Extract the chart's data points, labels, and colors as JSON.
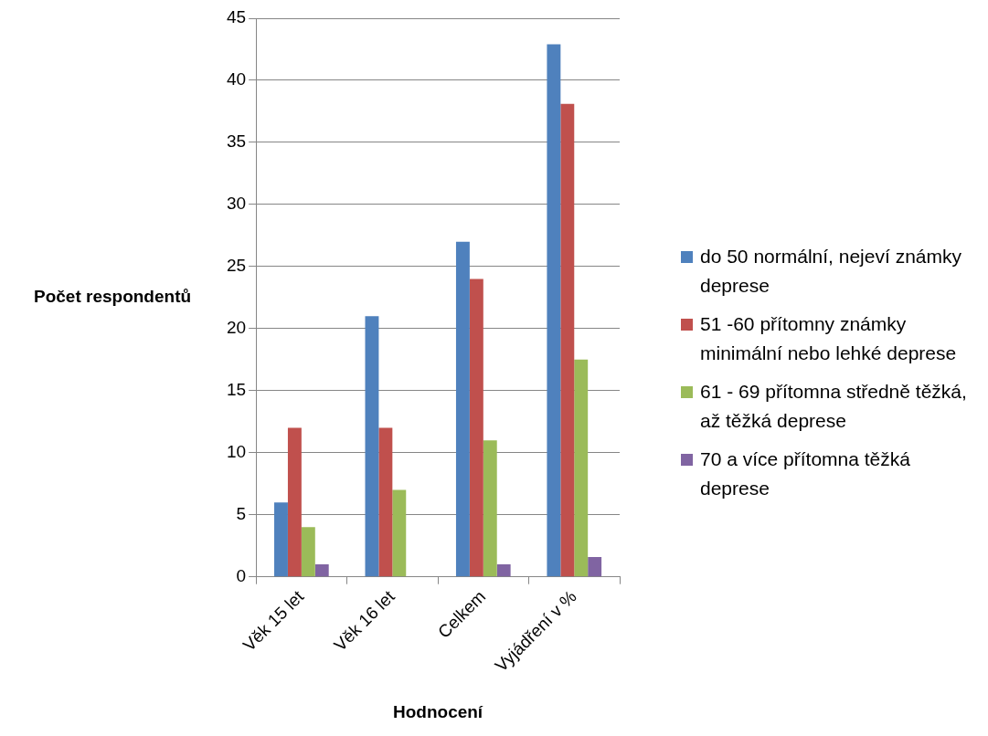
{
  "chart_data": {
    "type": "bar",
    "xlabel": "Hodnocení",
    "ylabel": "Počet respondentů",
    "categories": [
      "Věk 15 let",
      "Věk 16 let",
      "Celkem",
      "Vyjádření v %"
    ],
    "series": [
      {
        "name": "do 50 normální, nejeví známky deprese",
        "color": "#4f81bd",
        "values": [
          6,
          21,
          27,
          42.9
        ]
      },
      {
        "name": "51 -60 přítomny známky minimální nebo lehké deprese",
        "color": "#c0504d",
        "values": [
          12,
          12,
          24,
          38.1
        ]
      },
      {
        "name": "61 - 69 přítomna středně těžká, až těžká deprese",
        "color": "#9bbb59",
        "values": [
          4,
          7,
          11,
          17.5
        ]
      },
      {
        "name": "70 a více přítomna těžká deprese",
        "color": "#8064a2",
        "values": [
          1,
          0,
          1,
          1.6
        ]
      }
    ],
    "ylim": [
      0,
      45
    ],
    "yticks": [
      0,
      5,
      10,
      15,
      20,
      25,
      30,
      35,
      40,
      45
    ],
    "grid": "y",
    "legend": "right"
  }
}
